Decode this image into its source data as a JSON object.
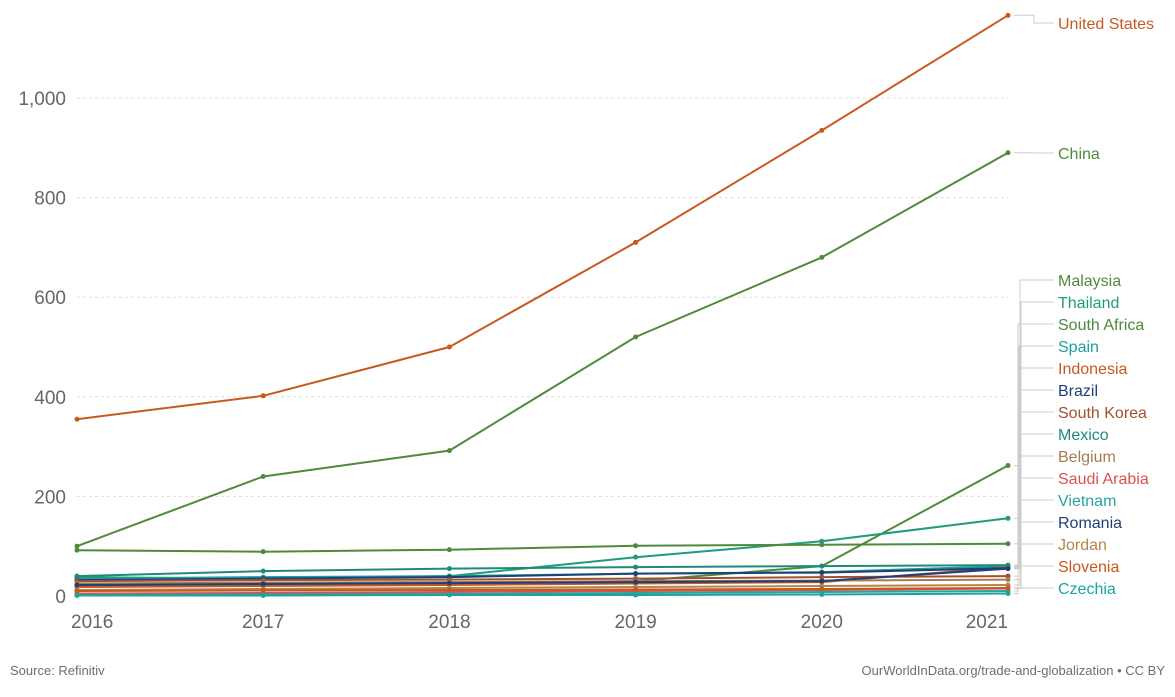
{
  "chart_data": {
    "type": "line",
    "x": [
      2016,
      2017,
      2018,
      2019,
      2020,
      2021
    ],
    "x_tick_labels": [
      "2016",
      "2017",
      "2018",
      "2019",
      "2020",
      "2021"
    ],
    "y_ticks": [
      0,
      200,
      400,
      600,
      800,
      1000
    ],
    "y_tick_labels": [
      "0",
      "200",
      "400",
      "600",
      "800",
      "1,000"
    ],
    "ylim": [
      0,
      1170
    ],
    "grid": "horizontal dashed",
    "legend": "right, labels at line ends",
    "series": [
      {
        "name": "United States",
        "color": "#c8591e",
        "values": [
          355,
          402,
          500,
          710,
          935,
          1166
        ]
      },
      {
        "name": "China",
        "color": "#4e8a3a",
        "values": [
          100,
          240,
          292,
          520,
          680,
          890
        ]
      },
      {
        "name": "Malaysia",
        "color": "#4e8a3a",
        "values": [
          20,
          22,
          25,
          30,
          60,
          262
        ]
      },
      {
        "name": "Thailand",
        "color": "#1f9d7a",
        "values": [
          38,
          35,
          40,
          78,
          110,
          156
        ]
      },
      {
        "name": "South Africa",
        "color": "#4e8a3a",
        "values": [
          92,
          89,
          93,
          101,
          103,
          105
        ]
      },
      {
        "name": "Spain",
        "color": "#1f9d9d",
        "values": [
          35,
          38,
          40,
          45,
          48,
          60
        ]
      },
      {
        "name": "Indonesia",
        "color": "#c8591e",
        "values": [
          18,
          20,
          22,
          25,
          28,
          58
        ]
      },
      {
        "name": "Brazil",
        "color": "#1e3f7a",
        "values": [
          32,
          35,
          38,
          45,
          47,
          56
        ]
      },
      {
        "name": "South Korea",
        "color": "#a0522d",
        "values": [
          30,
          32,
          33,
          35,
          38,
          40
        ]
      },
      {
        "name": "Mexico",
        "color": "#1f8a7a",
        "values": [
          40,
          50,
          55,
          58,
          60,
          62
        ]
      },
      {
        "name": "Belgium",
        "color": "#a67c52",
        "values": [
          25,
          27,
          28,
          30,
          31,
          33
        ]
      },
      {
        "name": "Saudi Arabia",
        "color": "#d9534f",
        "values": [
          5,
          6,
          8,
          10,
          12,
          15
        ]
      },
      {
        "name": "Vietnam",
        "color": "#2aa3a3",
        "values": [
          2,
          3,
          4,
          6,
          8,
          10
        ]
      },
      {
        "name": "Romania",
        "color": "#1e3f7a",
        "values": [
          22,
          24,
          26,
          28,
          30,
          55
        ]
      },
      {
        "name": "Jordan",
        "color": "#b5844a",
        "values": [
          12,
          14,
          16,
          18,
          20,
          22
        ]
      },
      {
        "name": "Slovenia",
        "color": "#c8591e",
        "values": [
          10,
          11,
          12,
          13,
          14,
          16
        ]
      },
      {
        "name": "Czechia",
        "color": "#1aa3a3",
        "values": [
          1,
          1,
          2,
          2,
          3,
          5
        ]
      }
    ],
    "source": "Source: Refinitiv",
    "credit": "OurWorldInData.org/trade-and-globalization • CC BY"
  }
}
